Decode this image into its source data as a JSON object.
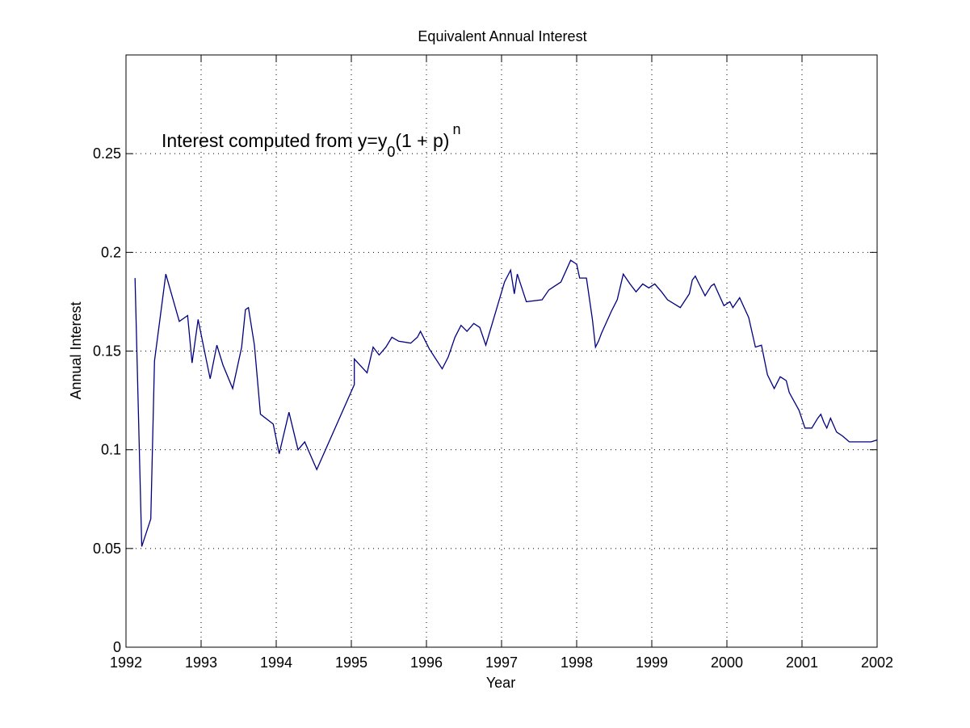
{
  "chart_data": {
    "type": "line",
    "title": "Equivalent Annual Interest",
    "xlabel": "Year",
    "ylabel": "Annual Interest",
    "xlim": [
      1992,
      2002
    ],
    "ylim": [
      0,
      0.3
    ],
    "xticks": [
      1992,
      1993,
      1994,
      1995,
      1996,
      1997,
      1998,
      1999,
      2000,
      2001,
      2002
    ],
    "xtick_labels": [
      "1992",
      "1993",
      "1994",
      "1995",
      "1996",
      "1997",
      "1998",
      "1999",
      "2000",
      "2001",
      "2002"
    ],
    "yticks": [
      0,
      0.05,
      0.1,
      0.15,
      0.2,
      0.25
    ],
    "ytick_labels": [
      "0",
      "0.05",
      "0.1",
      "0.15",
      "0.2",
      "0.25"
    ],
    "grid": true,
    "line_color": "#000080",
    "annotation": {
      "pre": "Interest computed from y=y",
      "sub": "0",
      "mid": "(1 + p)",
      "sup": "n"
    },
    "series": [
      {
        "x": [
          1992.12,
          1992.21,
          1992.33,
          1992.38,
          1992.53,
          1992.71,
          1992.82,
          1992.88,
          1992.96,
          1993.04,
          1993.12,
          1993.21,
          1993.29,
          1993.42,
          1993.54,
          1993.59,
          1993.63,
          1993.71,
          1993.79,
          1993.96,
          1994.04,
          1994.17,
          1994.29,
          1994.38,
          1994.54,
          1995.04,
          1995.04,
          1995.21,
          1995.29,
          1995.37,
          1995.46,
          1995.54,
          1995.63,
          1995.79,
          1995.88,
          1995.92,
          1996.04,
          1996.21,
          1996.29,
          1996.38,
          1996.46,
          1996.54,
          1996.63,
          1996.71,
          1996.79,
          1997.04,
          1997.12,
          1997.17,
          1997.21,
          1997.33,
          1997.54,
          1997.63,
          1997.71,
          1997.79,
          1997.92,
          1998.0,
          1998.04,
          1998.13,
          1998.21,
          1998.25,
          1998.29,
          1998.33,
          1998.46,
          1998.54,
          1998.62,
          1998.71,
          1998.79,
          1998.88,
          1998.96,
          1999.04,
          1999.13,
          1999.21,
          1999.38,
          1999.5,
          1999.54,
          1999.58,
          1999.63,
          1999.71,
          1999.79,
          1999.83,
          1999.96,
          2000.04,
          2000.08,
          2000.17,
          2000.29,
          2000.38,
          2000.46,
          2000.54,
          2000.63,
          2000.71,
          2000.75,
          2000.79,
          2000.83,
          2000.96,
          2001.04,
          2001.13,
          2001.21,
          2001.25,
          2001.29,
          2001.33,
          2001.38,
          2001.46,
          2001.54,
          2001.63,
          2001.71,
          2001.79,
          2001.88,
          2001.92,
          2002.0
        ],
        "y": [
          0.187,
          0.051,
          0.065,
          0.145,
          0.189,
          0.165,
          0.168,
          0.144,
          0.166,
          0.151,
          0.136,
          0.153,
          0.143,
          0.131,
          0.152,
          0.171,
          0.172,
          0.153,
          0.118,
          0.113,
          0.098,
          0.119,
          0.1,
          0.104,
          0.09,
          0.133,
          0.146,
          0.139,
          0.152,
          0.148,
          0.152,
          0.157,
          0.155,
          0.154,
          0.157,
          0.16,
          0.151,
          0.141,
          0.147,
          0.157,
          0.163,
          0.16,
          0.164,
          0.162,
          0.153,
          0.185,
          0.191,
          0.179,
          0.189,
          0.175,
          0.176,
          0.181,
          0.183,
          0.185,
          0.196,
          0.194,
          0.187,
          0.187,
          0.166,
          0.152,
          0.155,
          0.159,
          0.17,
          0.176,
          0.189,
          0.184,
          0.18,
          0.184,
          0.182,
          0.184,
          0.18,
          0.176,
          0.172,
          0.179,
          0.186,
          0.188,
          0.184,
          0.178,
          0.183,
          0.184,
          0.173,
          0.175,
          0.172,
          0.177,
          0.167,
          0.152,
          0.153,
          0.138,
          0.131,
          0.137,
          0.136,
          0.135,
          0.129,
          0.12,
          0.111,
          0.111,
          0.116,
          0.118,
          0.114,
          0.111,
          0.116,
          0.109,
          0.107,
          0.104,
          0.104,
          0.104,
          0.104,
          0.104,
          0.105
        ]
      }
    ]
  }
}
